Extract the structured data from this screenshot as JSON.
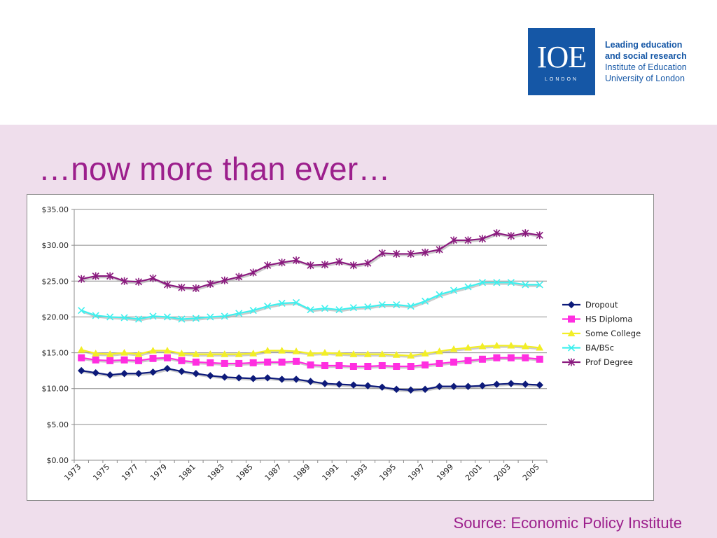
{
  "logo": {
    "mark": "IOE",
    "subtitle": "LONDON",
    "tagline_line1": "Leading education",
    "tagline_line2": "and social research",
    "org_line1": "Institute of Education",
    "org_line2": "University of London",
    "brand_color": "#1557a6"
  },
  "slide": {
    "title": "…now more than ever…",
    "source": "Source: Economic Policy Institute",
    "title_color": "#9c1f8c",
    "background_color": "#efdeec"
  },
  "chart_data": {
    "type": "line",
    "title": "",
    "xlabel": "",
    "ylabel": "",
    "ylim": [
      0,
      35
    ],
    "ytick_step": 5,
    "ytick_labels": [
      "$0.00",
      "$5.00",
      "$10.00",
      "$15.00",
      "$20.00",
      "$25.00",
      "$30.00",
      "$35.00"
    ],
    "x": [
      1973,
      1974,
      1975,
      1976,
      1977,
      1978,
      1979,
      1980,
      1981,
      1982,
      1983,
      1984,
      1985,
      1986,
      1987,
      1988,
      1989,
      1990,
      1991,
      1992,
      1993,
      1994,
      1995,
      1996,
      1997,
      1998,
      1999,
      2000,
      2001,
      2002,
      2003,
      2004,
      2005
    ],
    "xtick_labels": [
      "1973",
      "1975",
      "1977",
      "1979",
      "1981",
      "1983",
      "1985",
      "1987",
      "1989",
      "1991",
      "1993",
      "1995",
      "1997",
      "1999",
      "2001",
      "2003",
      "2005"
    ],
    "grid": true,
    "legend_position": "right",
    "series": [
      {
        "name": "Dropout",
        "color": "#0d1a7a",
        "marker": "diamond",
        "values": [
          12.5,
          12.2,
          11.9,
          12.1,
          12.1,
          12.3,
          12.8,
          12.4,
          12.1,
          11.8,
          11.6,
          11.5,
          11.4,
          11.5,
          11.3,
          11.3,
          11.0,
          10.7,
          10.6,
          10.5,
          10.4,
          10.2,
          9.9,
          9.8,
          9.9,
          10.3,
          10.3,
          10.3,
          10.4,
          10.6,
          10.7,
          10.6,
          10.5
        ]
      },
      {
        "name": "HS Diploma",
        "color": "#ff2ee0",
        "marker": "square",
        "values": [
          14.3,
          14.0,
          13.9,
          14.0,
          13.9,
          14.2,
          14.3,
          13.9,
          13.7,
          13.6,
          13.5,
          13.5,
          13.6,
          13.7,
          13.7,
          13.8,
          13.3,
          13.2,
          13.2,
          13.1,
          13.1,
          13.2,
          13.1,
          13.1,
          13.3,
          13.5,
          13.7,
          13.9,
          14.1,
          14.3,
          14.3,
          14.3,
          14.1
        ]
      },
      {
        "name": "Some College",
        "color": "#f2ee26",
        "marker": "triangle",
        "values": [
          15.4,
          14.9,
          14.8,
          15.0,
          14.8,
          15.3,
          15.3,
          14.9,
          14.8,
          14.8,
          14.8,
          14.8,
          14.9,
          15.3,
          15.3,
          15.2,
          14.9,
          15.0,
          14.9,
          14.8,
          14.8,
          14.8,
          14.7,
          14.6,
          14.9,
          15.2,
          15.5,
          15.7,
          15.9,
          16.0,
          16.0,
          15.9,
          15.7
        ]
      },
      {
        "name": "BA/BSc",
        "color": "#3ff0ee",
        "marker": "x",
        "values": [
          20.9,
          20.2,
          20.0,
          19.9,
          19.7,
          20.1,
          20.0,
          19.7,
          19.8,
          20.0,
          20.1,
          20.5,
          20.9,
          21.5,
          21.9,
          22.0,
          21.0,
          21.2,
          21.0,
          21.3,
          21.4,
          21.7,
          21.7,
          21.5,
          22.2,
          23.1,
          23.7,
          24.2,
          24.8,
          24.8,
          24.8,
          24.5,
          24.5
        ]
      },
      {
        "name": "Prof Degree",
        "color": "#8a1a7e",
        "marker": "star",
        "values": [
          25.3,
          25.7,
          25.7,
          25.0,
          24.9,
          25.4,
          24.5,
          24.1,
          24.0,
          24.6,
          25.1,
          25.6,
          26.2,
          27.2,
          27.6,
          27.9,
          27.2,
          27.3,
          27.7,
          27.2,
          27.5,
          28.9,
          28.8,
          28.8,
          29.0,
          29.4,
          30.7,
          30.7,
          30.9,
          31.7,
          31.3,
          31.7,
          31.4
        ]
      }
    ]
  }
}
